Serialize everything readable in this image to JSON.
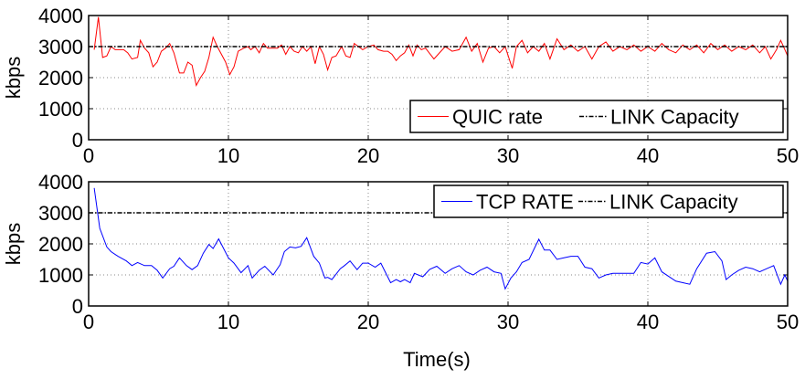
{
  "chart_data": [
    {
      "type": "line",
      "title": "",
      "xlabel": "",
      "ylabel": "kbps",
      "xlim": [
        0,
        50
      ],
      "ylim": [
        0,
        4000
      ],
      "xticks": [
        "0",
        "10",
        "20",
        "30",
        "40",
        "50"
      ],
      "yticks": [
        "0",
        "1000",
        "2000",
        "3000",
        "4000"
      ],
      "grid": true,
      "legend_position": "bottom-right",
      "series": [
        {
          "name": "QUIC rate",
          "color": "#ff0000",
          "style": "solid",
          "points": [
            [
              0.4,
              2900
            ],
            [
              0.7,
              3950
            ],
            [
              1.0,
              2650
            ],
            [
              1.3,
              2700
            ],
            [
              1.6,
              3000
            ],
            [
              1.9,
              2900
            ],
            [
              2.5,
              2900
            ],
            [
              2.8,
              2800
            ],
            [
              3.1,
              2600
            ],
            [
              3.5,
              2650
            ],
            [
              3.7,
              3200
            ],
            [
              4.0,
              2950
            ],
            [
              4.3,
              2800
            ],
            [
              4.6,
              2350
            ],
            [
              4.9,
              2500
            ],
            [
              5.2,
              2850
            ],
            [
              5.5,
              2950
            ],
            [
              5.8,
              3100
            ],
            [
              6.1,
              2800
            ],
            [
              6.5,
              2150
            ],
            [
              6.8,
              2150
            ],
            [
              7.1,
              2500
            ],
            [
              7.4,
              2400
            ],
            [
              7.7,
              1750
            ],
            [
              8.0,
              2000
            ],
            [
              8.3,
              2200
            ],
            [
              8.6,
              2650
            ],
            [
              8.9,
              3300
            ],
            [
              9.2,
              3000
            ],
            [
              9.8,
              2500
            ],
            [
              10.1,
              2100
            ],
            [
              10.4,
              2350
            ],
            [
              10.7,
              2850
            ],
            [
              11.1,
              2950
            ],
            [
              11.4,
              3000
            ],
            [
              11.6,
              2900
            ],
            [
              11.9,
              3000
            ],
            [
              12.2,
              2800
            ],
            [
              12.5,
              3100
            ],
            [
              12.8,
              2950
            ],
            [
              13.5,
              2950
            ],
            [
              13.8,
              3050
            ],
            [
              14.1,
              2750
            ],
            [
              14.4,
              3000
            ],
            [
              14.7,
              2850
            ],
            [
              15.0,
              2800
            ],
            [
              15.3,
              3000
            ],
            [
              15.6,
              2850
            ],
            [
              15.9,
              3000
            ],
            [
              16.2,
              2450
            ],
            [
              16.5,
              3000
            ],
            [
              16.8,
              2750
            ],
            [
              17.1,
              2250
            ],
            [
              17.4,
              2650
            ],
            [
              17.7,
              2700
            ],
            [
              18.1,
              3000
            ],
            [
              18.4,
              2700
            ],
            [
              18.7,
              2650
            ],
            [
              19.0,
              3100
            ],
            [
              19.3,
              3000
            ],
            [
              19.6,
              2900
            ],
            [
              20.0,
              3000
            ],
            [
              20.4,
              3050
            ],
            [
              20.7,
              2900
            ],
            [
              21.1,
              2850
            ],
            [
              21.4,
              2850
            ],
            [
              21.7,
              2750
            ],
            [
              22.0,
              2550
            ],
            [
              22.3,
              2700
            ],
            [
              22.6,
              2800
            ],
            [
              22.9,
              3050
            ],
            [
              23.2,
              2700
            ],
            [
              23.5,
              3050
            ],
            [
              23.8,
              2900
            ],
            [
              24.1,
              2950
            ],
            [
              24.7,
              2600
            ],
            [
              25.0,
              2750
            ],
            [
              25.5,
              3000
            ],
            [
              26.0,
              2850
            ],
            [
              26.5,
              2900
            ],
            [
              27.0,
              3300
            ],
            [
              27.4,
              2850
            ],
            [
              27.8,
              3100
            ],
            [
              28.2,
              2500
            ],
            [
              28.6,
              2950
            ],
            [
              29.0,
              3000
            ],
            [
              29.4,
              2800
            ],
            [
              29.8,
              3000
            ],
            [
              30.3,
              2300
            ],
            [
              30.6,
              3000
            ],
            [
              31.0,
              3200
            ],
            [
              31.4,
              2800
            ],
            [
              31.8,
              3000
            ],
            [
              32.2,
              2850
            ],
            [
              32.6,
              3100
            ],
            [
              33.0,
              2600
            ],
            [
              33.5,
              3250
            ],
            [
              34.0,
              2900
            ],
            [
              34.5,
              3050
            ],
            [
              35.0,
              2850
            ],
            [
              35.5,
              3000
            ],
            [
              36.0,
              2600
            ],
            [
              36.5,
              3000
            ],
            [
              37.0,
              3150
            ],
            [
              37.5,
              2850
            ],
            [
              38.0,
              3000
            ],
            [
              38.5,
              2900
            ],
            [
              39.0,
              3050
            ],
            [
              39.5,
              2850
            ],
            [
              40.0,
              3000
            ],
            [
              40.5,
              2850
            ],
            [
              41.0,
              3100
            ],
            [
              41.5,
              2900
            ],
            [
              42.0,
              2800
            ],
            [
              42.5,
              3050
            ],
            [
              43.0,
              2900
            ],
            [
              43.5,
              3050
            ],
            [
              44.0,
              2800
            ],
            [
              44.5,
              3100
            ],
            [
              45.0,
              2900
            ],
            [
              45.5,
              3050
            ],
            [
              46.0,
              2850
            ],
            [
              46.5,
              3000
            ],
            [
              47.0,
              2900
            ],
            [
              47.5,
              3050
            ],
            [
              48.0,
              2800
            ],
            [
              48.4,
              3000
            ],
            [
              48.8,
              2600
            ],
            [
              49.2,
              2900
            ],
            [
              49.5,
              3200
            ],
            [
              50.0,
              2700
            ]
          ]
        },
        {
          "name": "LINK Capacity",
          "color": "#000000",
          "style": "dashdot",
          "points": [
            [
              0,
              3000
            ],
            [
              50,
              3000
            ]
          ]
        }
      ]
    },
    {
      "type": "line",
      "title": "",
      "xlabel": "Time(s)",
      "ylabel": "kbps",
      "xlim": [
        0,
        50
      ],
      "ylim": [
        0,
        4000
      ],
      "xticks": [
        "0",
        "10",
        "20",
        "30",
        "40",
        "50"
      ],
      "yticks": [
        "0",
        "1000",
        "2000",
        "3000",
        "4000"
      ],
      "grid": true,
      "legend_position": "top-right",
      "series": [
        {
          "name": "TCP RATE",
          "color": "#0000ff",
          "style": "solid",
          "points": [
            [
              0.4,
              3800
            ],
            [
              0.8,
              2500
            ],
            [
              1.3,
              1900
            ],
            [
              1.6,
              1750
            ],
            [
              2.1,
              1600
            ],
            [
              2.7,
              1450
            ],
            [
              3.1,
              1300
            ],
            [
              3.5,
              1400
            ],
            [
              4.0,
              1300
            ],
            [
              4.5,
              1300
            ],
            [
              4.9,
              1150
            ],
            [
              5.3,
              900
            ],
            [
              5.8,
              1200
            ],
            [
              6.1,
              1280
            ],
            [
              6.5,
              1550
            ],
            [
              7.0,
              1300
            ],
            [
              7.4,
              1170
            ],
            [
              7.8,
              1300
            ],
            [
              8.2,
              1700
            ],
            [
              8.6,
              1980
            ],
            [
              8.9,
              1850
            ],
            [
              9.3,
              2160
            ],
            [
              10.0,
              1550
            ],
            [
              10.4,
              1380
            ],
            [
              10.9,
              1070
            ],
            [
              11.4,
              1300
            ],
            [
              11.7,
              900
            ],
            [
              12.2,
              1150
            ],
            [
              12.6,
              1280
            ],
            [
              13.2,
              1000
            ],
            [
              13.7,
              1330
            ],
            [
              14.0,
              1750
            ],
            [
              14.4,
              1900
            ],
            [
              14.8,
              1870
            ],
            [
              15.2,
              1920
            ],
            [
              15.6,
              2200
            ],
            [
              16.1,
              1600
            ],
            [
              16.5,
              1380
            ],
            [
              16.9,
              900
            ],
            [
              17.1,
              920
            ],
            [
              17.4,
              850
            ],
            [
              18.0,
              1200
            ],
            [
              18.3,
              1300
            ],
            [
              18.7,
              1450
            ],
            [
              19.2,
              1170
            ],
            [
              19.6,
              1380
            ],
            [
              20.0,
              1380
            ],
            [
              20.5,
              1250
            ],
            [
              20.9,
              1380
            ],
            [
              21.6,
              750
            ],
            [
              22.0,
              850
            ],
            [
              22.3,
              780
            ],
            [
              22.6,
              850
            ],
            [
              23.0,
              750
            ],
            [
              23.3,
              1050
            ],
            [
              23.9,
              940
            ],
            [
              24.4,
              1180
            ],
            [
              24.9,
              1280
            ],
            [
              25.5,
              1050
            ],
            [
              26.0,
              1200
            ],
            [
              26.5,
              1300
            ],
            [
              27.0,
              1100
            ],
            [
              27.5,
              1000
            ],
            [
              28.0,
              1150
            ],
            [
              28.5,
              1250
            ],
            [
              29.0,
              1100
            ],
            [
              29.5,
              1050
            ],
            [
              29.8,
              550
            ],
            [
              30.2,
              900
            ],
            [
              30.6,
              1100
            ],
            [
              31.0,
              1400
            ],
            [
              31.5,
              1500
            ],
            [
              32.2,
              2150
            ],
            [
              32.6,
              1800
            ],
            [
              33.0,
              1800
            ],
            [
              33.5,
              1500
            ],
            [
              34.0,
              1550
            ],
            [
              34.5,
              1600
            ],
            [
              35.0,
              1600
            ],
            [
              35.5,
              1250
            ],
            [
              36.0,
              1200
            ],
            [
              36.5,
              900
            ],
            [
              37.0,
              1000
            ],
            [
              37.5,
              1050
            ],
            [
              38.5,
              1050
            ],
            [
              39.0,
              1050
            ],
            [
              39.5,
              1400
            ],
            [
              40.0,
              1350
            ],
            [
              40.5,
              1550
            ],
            [
              41.0,
              1100
            ],
            [
              41.5,
              950
            ],
            [
              42.0,
              800
            ],
            [
              42.5,
              750
            ],
            [
              43.0,
              700
            ],
            [
              43.5,
              1200
            ],
            [
              44.2,
              1700
            ],
            [
              44.8,
              1750
            ],
            [
              45.3,
              1450
            ],
            [
              45.6,
              850
            ],
            [
              46.0,
              1000
            ],
            [
              46.5,
              1150
            ],
            [
              47.0,
              1250
            ],
            [
              47.5,
              1200
            ],
            [
              48.0,
              1100
            ],
            [
              48.5,
              1200
            ],
            [
              49.0,
              1300
            ],
            [
              49.5,
              700
            ],
            [
              49.8,
              1000
            ],
            [
              50.0,
              800
            ]
          ]
        },
        {
          "name": "LINK Capacity",
          "color": "#000000",
          "style": "dashdot",
          "points": [
            [
              0,
              3000
            ],
            [
              50,
              3000
            ]
          ]
        }
      ]
    }
  ]
}
